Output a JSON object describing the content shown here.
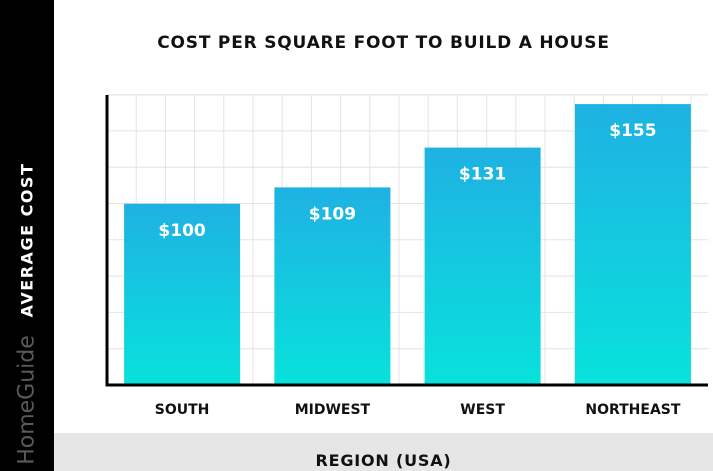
{
  "brand": "HomeGuide",
  "colors": {
    "bar_top": "#1fb1e3",
    "bar_bottom": "#08e2dc",
    "axis": "#000000",
    "grid": "#e4e4e4"
  },
  "chart_data": {
    "type": "bar",
    "title": "COST PER SQUARE FOOT TO BUILD A HOUSE",
    "xlabel": "REGION (USA)",
    "ylabel": "AVERAGE COST",
    "categories": [
      "SOUTH",
      "MIDWEST",
      "WEST",
      "NORTHEAST"
    ],
    "values": [
      100,
      109,
      131,
      155
    ],
    "data_labels": [
      "$100",
      "$109",
      "$131",
      "$155"
    ],
    "ylim": [
      0,
      160
    ],
    "grid": true,
    "legend": "none"
  }
}
